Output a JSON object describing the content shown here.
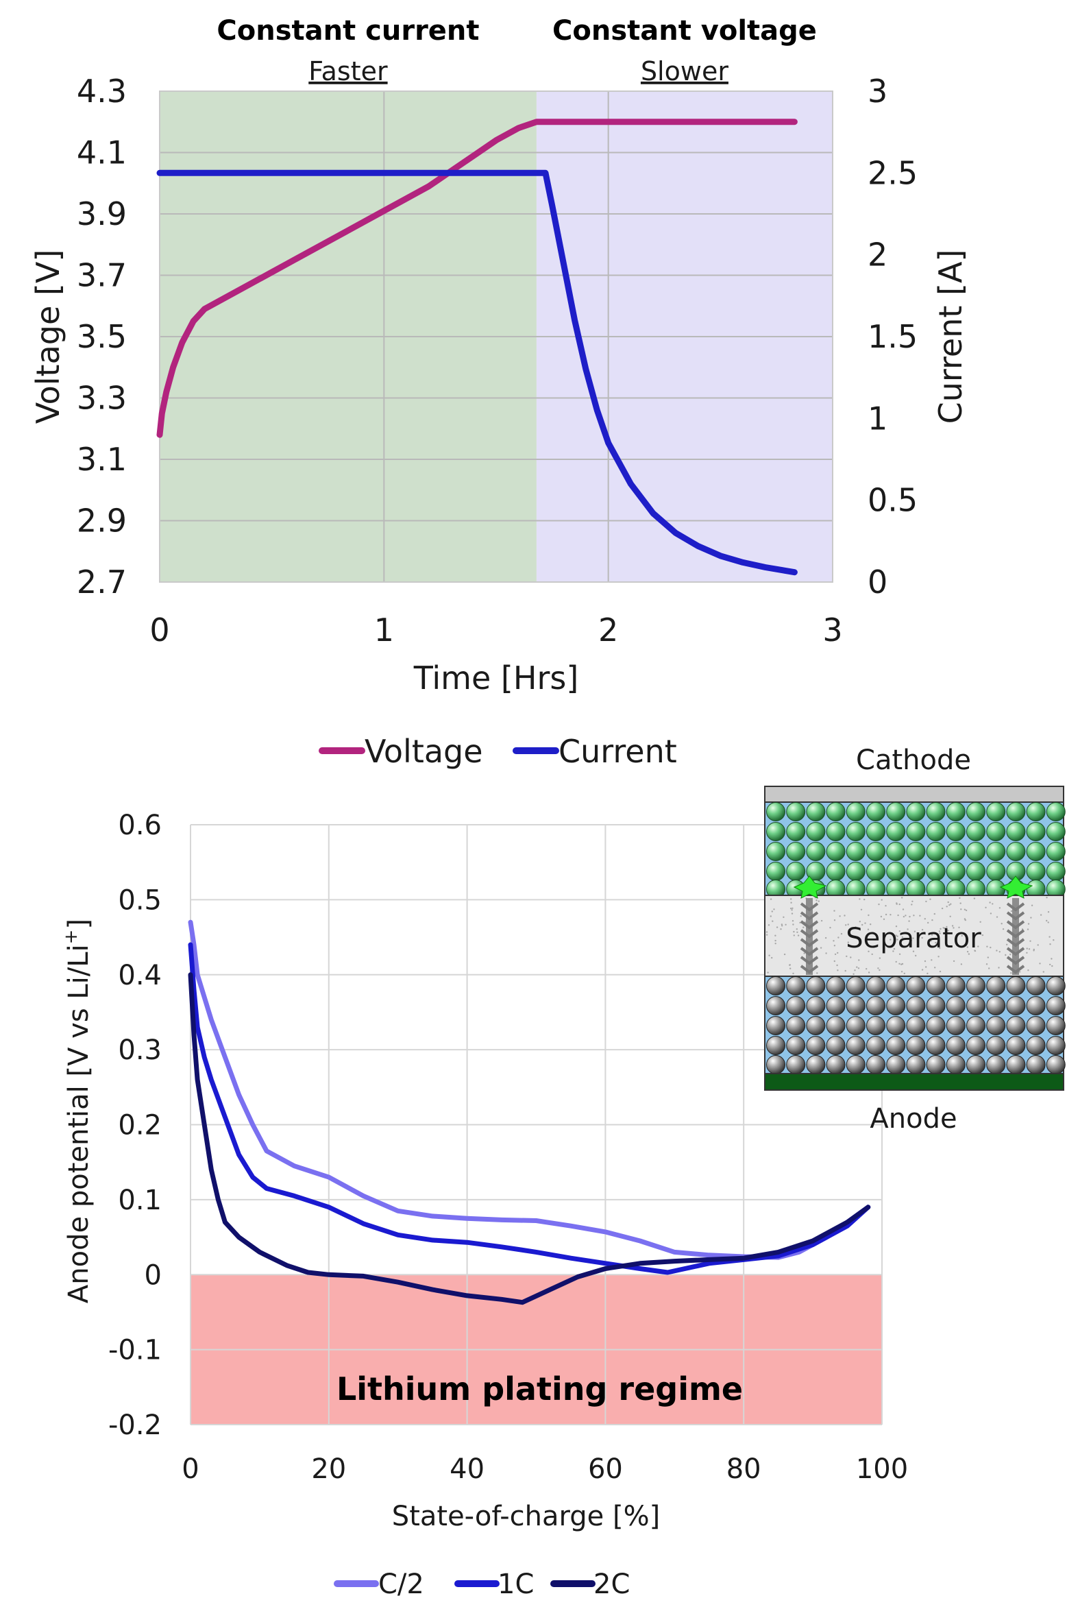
{
  "chart_data": [
    {
      "type": "line",
      "regions": [
        {
          "title": "Constant current",
          "subtitle": "Faster",
          "x_range": [
            0,
            1.68
          ],
          "color": "#cfe0cc"
        },
        {
          "title": "Constant voltage",
          "subtitle": "Slower",
          "x_range": [
            1.68,
            3.0
          ],
          "color": "#e3e0f8"
        }
      ],
      "xlabel": "Time [Hrs]",
      "ylabel": "Voltage [V]",
      "y2label": "Current [A]",
      "xlim": [
        0,
        3
      ],
      "ylim": [
        2.7,
        4.3
      ],
      "y2lim": [
        0,
        3
      ],
      "xticks": [
        "0",
        "1",
        "2",
        "3"
      ],
      "yticks": [
        "2.7",
        "2.9",
        "3.1",
        "3.3",
        "3.5",
        "3.7",
        "3.9",
        "4.1",
        "4.3"
      ],
      "y2ticks": [
        "0",
        "0.5",
        "1",
        "1.5",
        "2",
        "2.5",
        "3"
      ],
      "grid": true,
      "legend": "bottom",
      "series": [
        {
          "name": "Voltage",
          "axis": "left",
          "color": "#b2247e",
          "x": [
            0,
            0.01,
            0.03,
            0.06,
            0.1,
            0.15,
            0.2,
            0.3,
            0.4,
            0.5,
            0.6,
            0.8,
            1.0,
            1.2,
            1.3,
            1.4,
            1.5,
            1.6,
            1.68,
            2.0,
            2.5,
            2.83
          ],
          "y": [
            3.18,
            3.25,
            3.32,
            3.4,
            3.48,
            3.55,
            3.59,
            3.63,
            3.67,
            3.71,
            3.75,
            3.83,
            3.91,
            3.99,
            4.04,
            4.09,
            4.14,
            4.18,
            4.2,
            4.2,
            4.2,
            4.2
          ]
        },
        {
          "name": "Current",
          "axis": "right",
          "color": "#1e1ec8",
          "x": [
            0,
            0.5,
            1.0,
            1.5,
            1.68,
            1.72,
            1.75,
            1.8,
            1.85,
            1.9,
            1.95,
            2.0,
            2.1,
            2.2,
            2.3,
            2.4,
            2.5,
            2.6,
            2.7,
            2.83
          ],
          "y": [
            2.5,
            2.5,
            2.5,
            2.5,
            2.5,
            2.5,
            2.3,
            1.95,
            1.6,
            1.3,
            1.05,
            0.85,
            0.6,
            0.42,
            0.3,
            0.22,
            0.16,
            0.12,
            0.09,
            0.06
          ]
        }
      ]
    },
    {
      "type": "line",
      "xlabel": "State-of-charge [%]",
      "ylabel": "Anode potential [V vs Li/Li",
      "ylabel_sup": "+",
      "ylabel_end": "]",
      "xlim": [
        0,
        100
      ],
      "ylim": [
        -0.2,
        0.6
      ],
      "xticks": [
        "0",
        "20",
        "40",
        "60",
        "80",
        "100"
      ],
      "yticks": [
        "-0.2",
        "-0.1",
        "0",
        "0.1",
        "0.2",
        "0.3",
        "0.4",
        "0.5",
        "0.6"
      ],
      "grid": true,
      "legend": "bottom",
      "annotations": [
        {
          "text": "Lithium plating regime",
          "y_range": [
            -0.2,
            0
          ],
          "color": "#f9aeae"
        }
      ],
      "series": [
        {
          "name": "C/2",
          "color": "#7a70f0",
          "x": [
            0,
            0.5,
            1,
            2,
            3,
            5,
            7,
            9,
            11,
            15,
            20,
            25,
            30,
            35,
            40,
            45,
            50,
            55,
            60,
            65,
            70,
            75,
            80,
            85,
            88,
            92,
            95,
            98
          ],
          "y": [
            0.47,
            0.44,
            0.4,
            0.37,
            0.34,
            0.29,
            0.24,
            0.2,
            0.165,
            0.145,
            0.13,
            0.105,
            0.085,
            0.078,
            0.075,
            0.073,
            0.072,
            0.065,
            0.057,
            0.045,
            0.03,
            0.026,
            0.024,
            0.023,
            0.03,
            0.05,
            0.07,
            0.09
          ]
        },
        {
          "name": "1C",
          "color": "#1a1ad0",
          "x": [
            0,
            0.5,
            1,
            2,
            3,
            5,
            7,
            9,
            11,
            15,
            20,
            25,
            30,
            35,
            40,
            45,
            50,
            55,
            60,
            65,
            69,
            75,
            80,
            85,
            90,
            95,
            98
          ],
          "y": [
            0.44,
            0.38,
            0.33,
            0.29,
            0.26,
            0.21,
            0.16,
            0.13,
            0.115,
            0.105,
            0.09,
            0.068,
            0.053,
            0.046,
            0.043,
            0.037,
            0.03,
            0.022,
            0.015,
            0.008,
            0.003,
            0.015,
            0.02,
            0.025,
            0.04,
            0.065,
            0.09
          ]
        },
        {
          "name": "2C",
          "color": "#10106a",
          "x": [
            0,
            0.5,
            1,
            2,
            3,
            4,
            5,
            7,
            10,
            14,
            17,
            20,
            25,
            30,
            35,
            40,
            45,
            48,
            52,
            56,
            60,
            65,
            70,
            75,
            80,
            85,
            90,
            95,
            98
          ],
          "y": [
            0.4,
            0.32,
            0.26,
            0.2,
            0.14,
            0.1,
            0.07,
            0.05,
            0.03,
            0.012,
            0.003,
            0.0,
            -0.002,
            -0.01,
            -0.02,
            -0.028,
            -0.033,
            -0.037,
            -0.02,
            -0.003,
            0.008,
            0.015,
            0.018,
            0.02,
            0.022,
            0.03,
            0.045,
            0.07,
            0.09
          ]
        }
      ]
    }
  ],
  "inset": {
    "top_label": "Cathode",
    "middle_label": "Separator",
    "bottom_label": "Anode"
  },
  "colors": {
    "cathode_particle": "#5fbf76",
    "anode_particle": "#9a9a9a",
    "electrolyte": "#8fc4e8",
    "collector_top": "#c8c8c8",
    "collector_bottom": "#0d5a17",
    "dendrite": "#33ee33"
  }
}
